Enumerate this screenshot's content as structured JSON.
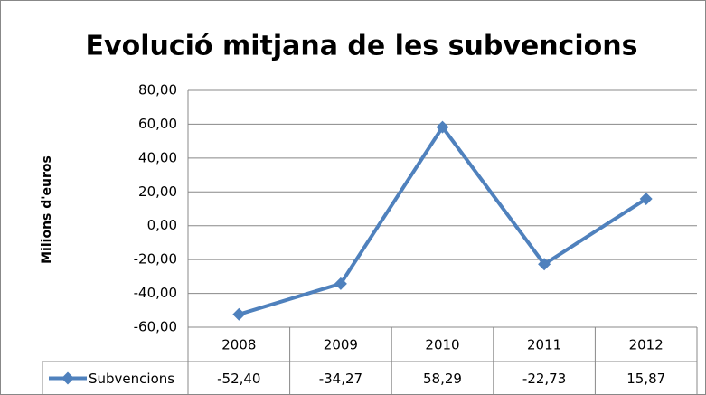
{
  "chart_data": {
    "type": "line",
    "title": "Evolució mitjana de les subvencions",
    "y_label": "Milions d'euros",
    "categories": [
      "2008",
      "2009",
      "2010",
      "2011",
      "2012"
    ],
    "series": [
      {
        "name": "Subvencions",
        "color": "#4f81bd",
        "values": [
          -52.4,
          -34.27,
          58.29,
          -22.73,
          15.87
        ],
        "value_labels": [
          "-52,40",
          "-34,27",
          "58,29",
          "-22,73",
          "15,87"
        ]
      }
    ],
    "ylim": [
      -60,
      80
    ],
    "yticks": [
      {
        "value": -60,
        "label": "-60,00"
      },
      {
        "value": -40,
        "label": "-40,00"
      },
      {
        "value": -20,
        "label": "-20,00"
      },
      {
        "value": 0,
        "label": "0,00"
      },
      {
        "value": 20,
        "label": "20,00"
      },
      {
        "value": 40,
        "label": "40,00"
      },
      {
        "value": 60,
        "label": "60,00"
      },
      {
        "value": 80,
        "label": "80,00"
      }
    ],
    "grid": true
  }
}
